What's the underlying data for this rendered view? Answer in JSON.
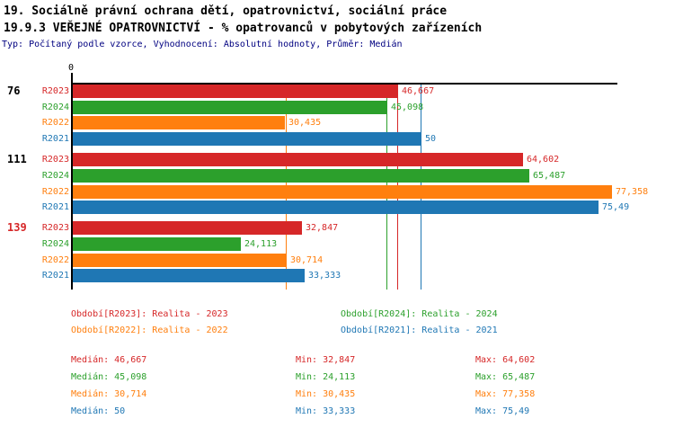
{
  "header": {
    "line1": "19. Sociálně právní ochrana dětí, opatrovnictví, sociální práce",
    "line2": "19.9.3 VEŘEJNÉ OPATROVNICTVÍ - % opatrovanců v pobytových zařízeních",
    "subtitle": "Typ: Počítaný podle vzorce, Vyhodnocení: Absolutní hodnoty, Průměr: Medián"
  },
  "colors": {
    "R2023": "#d62728",
    "R2024": "#2ca02c",
    "R2022": "#ff7f0e",
    "R2021": "#1f77b4",
    "subtitle": "#000080",
    "axis": "#000000",
    "group_label_default": "#000000",
    "group_label_highlight": "#d62728"
  },
  "chart_data": {
    "type": "bar",
    "orientation": "horizontal",
    "x_zero_label": "0",
    "xlim": [
      0,
      78.3
    ],
    "grid": "median-guide-lines",
    "legend_position": "bottom",
    "series_order": [
      "R2023",
      "R2024",
      "R2022",
      "R2021"
    ],
    "series_colors": {
      "R2023": "#d62728",
      "R2024": "#2ca02c",
      "R2022": "#ff7f0e",
      "R2021": "#1f77b4"
    },
    "groups": [
      {
        "label": "76",
        "label_color": "#000000",
        "bars": [
          {
            "series": "R2023",
            "value": 46.667,
            "label": "46,667"
          },
          {
            "series": "R2024",
            "value": 45.098,
            "label": "45,098"
          },
          {
            "series": "R2022",
            "value": 30.435,
            "label": "30,435"
          },
          {
            "series": "R2021",
            "value": 50,
            "label": "50"
          }
        ]
      },
      {
        "label": "111",
        "label_color": "#000000",
        "bars": [
          {
            "series": "R2023",
            "value": 64.602,
            "label": "64,602"
          },
          {
            "series": "R2024",
            "value": 65.487,
            "label": "65,487"
          },
          {
            "series": "R2022",
            "value": 77.358,
            "label": "77,358"
          },
          {
            "series": "R2021",
            "value": 75.49,
            "label": "75,49"
          }
        ]
      },
      {
        "label": "139",
        "label_color": "#d62728",
        "bars": [
          {
            "series": "R2023",
            "value": 32.847,
            "label": "32,847"
          },
          {
            "series": "R2024",
            "value": 24.113,
            "label": "24,113"
          },
          {
            "series": "R2022",
            "value": 30.714,
            "label": "30,714"
          },
          {
            "series": "R2021",
            "value": 33.333,
            "label": "33,333"
          }
        ]
      }
    ],
    "median_guides": [
      {
        "series": "R2023",
        "value": 46.667
      },
      {
        "series": "R2024",
        "value": 45.098
      },
      {
        "series": "R2022",
        "value": 30.714
      },
      {
        "series": "R2021",
        "value": 50
      }
    ]
  },
  "legend": {
    "items": [
      {
        "series": "R2023",
        "text": "Období[R2023]: Realita - 2023"
      },
      {
        "series": "R2024",
        "text": "Období[R2024]: Realita - 2024"
      },
      {
        "series": "R2022",
        "text": "Období[R2022]: Realita - 2022"
      },
      {
        "series": "R2021",
        "text": "Období[R2021]: Realita - 2021"
      }
    ]
  },
  "stats": {
    "rows": [
      {
        "series": "R2023",
        "median": "Medián: 46,667",
        "min": "Min: 32,847",
        "max": "Max: 64,602"
      },
      {
        "series": "R2024",
        "median": "Medián: 45,098",
        "min": "Min: 24,113",
        "max": "Max: 65,487"
      },
      {
        "series": "R2022",
        "median": "Medián: 30,714",
        "min": "Min: 30,435",
        "max": "Max: 77,358"
      },
      {
        "series": "R2021",
        "median": "Medián: 50",
        "min": "Min: 33,333",
        "max": "Max: 75,49"
      }
    ]
  }
}
